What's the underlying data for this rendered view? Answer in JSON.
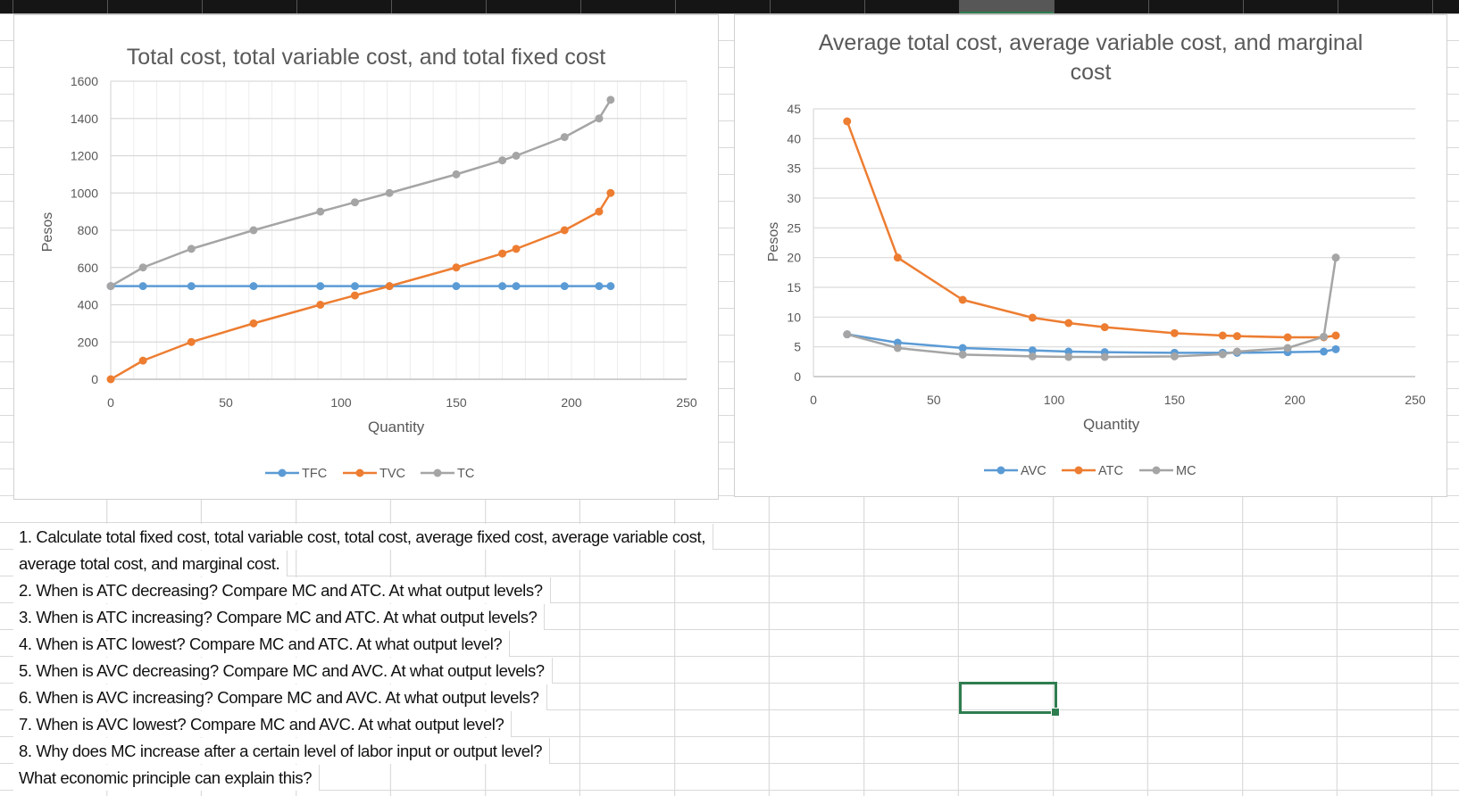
{
  "chart_data": [
    {
      "type": "line",
      "title": "Total cost, total variable cost, and total fixed cost",
      "xlabel": "Quantity",
      "ylabel": "Pesos",
      "xlim": [
        0,
        250
      ],
      "ylim": [
        0,
        1600
      ],
      "xticks": [
        "0",
        "50",
        "100",
        "150",
        "200",
        "250"
      ],
      "yticks": [
        "0",
        "200",
        "400",
        "600",
        "800",
        "1000",
        "1200",
        "1400",
        "1600"
      ],
      "grid": true,
      "legend": "bottom",
      "x": [
        0,
        14,
        35,
        62,
        91,
        106,
        121,
        150,
        170,
        176,
        197,
        212,
        217
      ],
      "series": [
        {
          "name": "TFC",
          "color": "#5b9bd5",
          "values": [
            500,
            500,
            500,
            500,
            500,
            500,
            500,
            500,
            500,
            500,
            500,
            500,
            500
          ]
        },
        {
          "name": "TVC",
          "color": "#ed7d31",
          "values": [
            0,
            100,
            200,
            300,
            400,
            450,
            500,
            600,
            675,
            700,
            800,
            900,
            1000
          ]
        },
        {
          "name": "TC",
          "color": "#a5a5a5",
          "values": [
            500,
            600,
            700,
            800,
            900,
            950,
            1000,
            1100,
            1175,
            1200,
            1300,
            1400,
            1500
          ]
        }
      ]
    },
    {
      "type": "line",
      "title": "Average total cost, average variable cost, and marginal cost",
      "title_lines": [
        "Average total cost, average variable cost, and marginal",
        "cost"
      ],
      "xlabel": "Quantity",
      "ylabel": "Pesos",
      "xlim": [
        0,
        250
      ],
      "ylim": [
        0,
        45
      ],
      "xticks": [
        "0",
        "50",
        "100",
        "150",
        "200",
        "250"
      ],
      "yticks": [
        "0",
        "5",
        "10",
        "15",
        "20",
        "25",
        "30",
        "35",
        "40",
        "45"
      ],
      "grid": true,
      "legend": "bottom",
      "x": [
        14,
        35,
        62,
        91,
        106,
        121,
        150,
        170,
        176,
        197,
        212,
        217
      ],
      "series": [
        {
          "name": "AVC",
          "color": "#5b9bd5",
          "values": [
            7.1,
            5.7,
            4.8,
            4.4,
            4.2,
            4.1,
            4.0,
            4.0,
            4.0,
            4.1,
            4.2,
            4.6
          ]
        },
        {
          "name": "ATC",
          "color": "#ed7d31",
          "values": [
            42.9,
            20.0,
            12.9,
            9.9,
            9.0,
            8.3,
            7.3,
            6.9,
            6.8,
            6.6,
            6.6,
            6.9
          ]
        },
        {
          "name": "MC",
          "color": "#a5a5a5",
          "values": [
            7.1,
            4.8,
            3.7,
            3.4,
            3.3,
            3.3,
            3.4,
            3.75,
            4.2,
            4.8,
            6.7,
            20.0
          ]
        }
      ]
    }
  ],
  "questions": [
    "1. Calculate total fixed cost, total variable cost, total cost, average fixed cost, average variable cost,",
    "average total cost, and marginal cost.",
    "2. When is ATC decreasing? Compare MC and ATC. At what output levels?",
    "3. When is ATC increasing? Compare MC and ATC. At what output levels?",
    "4. When is ATC lowest? Compare MC and ATC. At what output level?",
    "5. When is AVC decreasing? Compare MC and AVC. At what output levels?",
    "6. When is AVC increasing? Compare MC and AVC. At what output levels?",
    "7. When is AVC lowest? Compare MC and AVC. At what output level?",
    "8. Why does MC increase after a certain level of labor input or output level?",
    "What economic principle can explain this?"
  ],
  "colors": {
    "selection": "#2e7d4f",
    "header_bg": "#151515"
  }
}
